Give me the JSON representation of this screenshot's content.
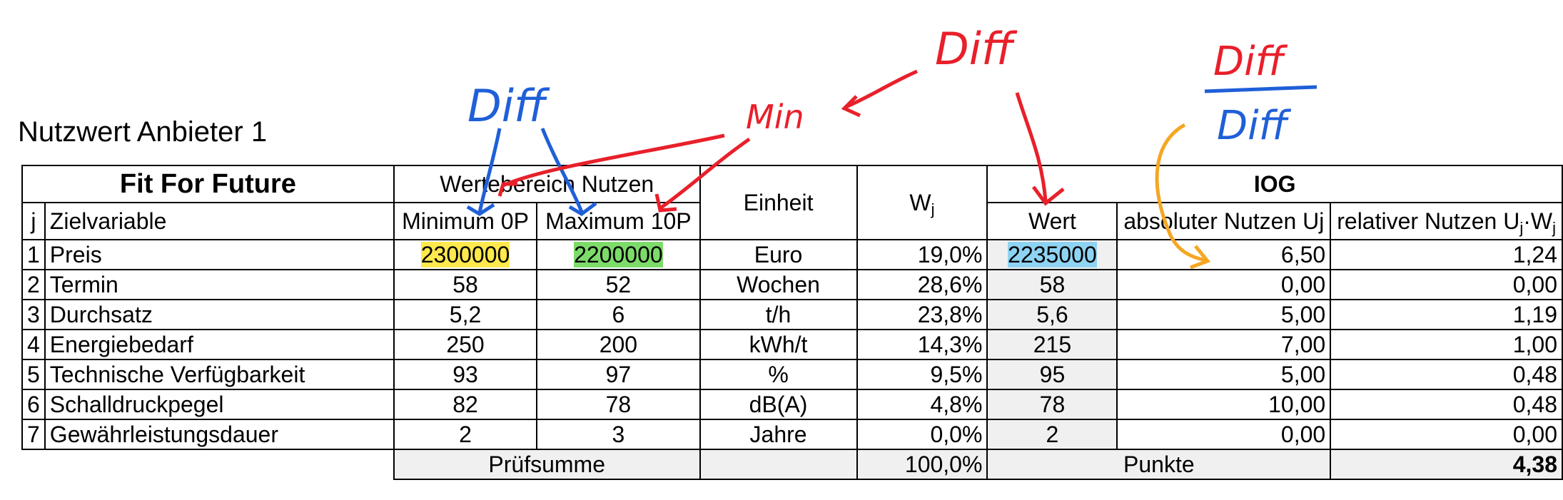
{
  "title": "Nutzwert Anbieter 1",
  "table": {
    "company": "Fit For Future",
    "group_range": "Wertebereich Nutzen",
    "group_iog": "IOG",
    "col_j": "j",
    "col_ziel": "Zielvariable",
    "col_min": "Minimum 0P",
    "col_max": "Maximum 10P",
    "col_einheit": "Einheit",
    "col_w": "W",
    "col_w_sub": "j",
    "col_wert": "Wert",
    "col_abs": "absoluter Nutzen Uj",
    "col_rel_prefix": "relativer Nutzen U",
    "col_rel_sub1": "j",
    "col_rel_dot": "·W",
    "col_rel_sub2": "j",
    "rows": [
      {
        "j": "1",
        "name": "Preis",
        "min": "2300000",
        "max": "2200000",
        "unit": "Euro",
        "w": "19,0%",
        "wert": "2235000",
        "abs": "6,50",
        "rel": "1,24"
      },
      {
        "j": "2",
        "name": "Termin",
        "min": "58",
        "max": "52",
        "unit": "Wochen",
        "w": "28,6%",
        "wert": "58",
        "abs": "0,00",
        "rel": "0,00"
      },
      {
        "j": "3",
        "name": "Durchsatz",
        "min": "5,2",
        "max": "6",
        "unit": "t/h",
        "w": "23,8%",
        "wert": "5,6",
        "abs": "5,00",
        "rel": "1,19"
      },
      {
        "j": "4",
        "name": "Energiebedarf",
        "min": "250",
        "max": "200",
        "unit": "kWh/t",
        "w": "14,3%",
        "wert": "215",
        "abs": "7,00",
        "rel": "1,00"
      },
      {
        "j": "5",
        "name": "Technische Verfügbarkeit",
        "min": "93",
        "max": "97",
        "unit": "%",
        "w": "9,5%",
        "wert": "95",
        "abs": "5,00",
        "rel": "0,48"
      },
      {
        "j": "6",
        "name": "Schalldruckpegel",
        "min": "82",
        "max": "78",
        "unit": "dB(A)",
        "w": "4,8%",
        "wert": "78",
        "abs": "10,00",
        "rel": "0,48"
      },
      {
        "j": "7",
        "name": "Gewährleistungsdauer",
        "min": "2",
        "max": "3",
        "unit": "Jahre",
        "w": "0,0%",
        "wert": "2",
        "abs": "0,00",
        "rel": "0,00"
      }
    ],
    "footer": {
      "pruefsumme_label": "Prüfsumme",
      "pruefsumme_value": "100,0%",
      "punkte_label": "Punkte",
      "punkte_value": "4,38"
    }
  },
  "annotations": {
    "diff_blue": "Diff",
    "min_red": "Min",
    "diff_red": "Diff",
    "frac_num": "Diff",
    "frac_den": "Diff",
    "colors": {
      "red": "#e8202a",
      "blue": "#1f5fd8",
      "orange": "#f5a623"
    }
  },
  "highlights": {
    "min_preis": "#ffe94d",
    "max_preis": "#7ddb6a",
    "wert_preis": "#8fd3f3"
  }
}
